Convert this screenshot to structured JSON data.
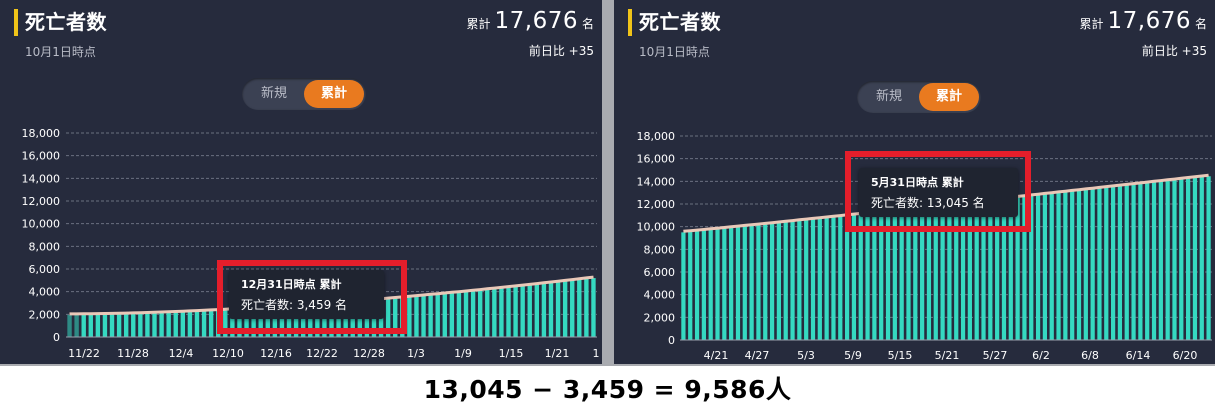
{
  "panels": [
    {
      "title": "死亡者数",
      "subtitle": "10月1日時点",
      "total_label": "累計",
      "total_value": "17,676",
      "total_unit": "名",
      "delta": "前日比 +35",
      "toggle": {
        "option_new": "新規",
        "option_cumulative": "累計",
        "selected": "累計"
      },
      "tooltip": {
        "title": "12月31日時点 累計",
        "value": "死亡者数: 3,459 名"
      }
    },
    {
      "title": "死亡者数",
      "subtitle": "10月1日時点",
      "total_label": "累計",
      "total_value": "17,676",
      "total_unit": "名",
      "delta": "前日比 +35",
      "toggle": {
        "option_new": "新規",
        "option_cumulative": "累計",
        "selected": "累計"
      },
      "tooltip": {
        "title": "5月31日時点 累計",
        "value": "死亡者数: 13,045 名"
      }
    }
  ],
  "formula": "13,045 − 3,459 = 9,586人",
  "colors": {
    "bar": "#35d9c1",
    "bar_dim": "#1f8a7c",
    "background": "#262b3d",
    "accent_toggle": "#e97a1f",
    "title_bar": "#f0c419",
    "highlight": "#e41e2b"
  },
  "chart_data": [
    {
      "type": "bar",
      "series": [
        {
          "values_start": 1950,
          "values_end": 5200
        }
      ],
      "x_tick_labels": [
        "11/22",
        "11/28",
        "12/4",
        "12/10",
        "12/16",
        "12/22",
        "12/28",
        "1/3",
        "1/9",
        "1/15",
        "1/21",
        "1"
      ],
      "y_tick_labels": [
        "0",
        "2,000",
        "4,000",
        "6,000",
        "8,000",
        "10,000",
        "12,000",
        "14,000",
        "16,000",
        "18,000"
      ],
      "ylim": [
        0,
        18000
      ],
      "grid": true,
      "bar_count": 75,
      "highlight_bar_index": 40,
      "highlight_value": 3459
    },
    {
      "type": "bar",
      "series": [
        {
          "values_start": 9500,
          "values_end": 14450
        }
      ],
      "x_tick_labels": [
        "4/21",
        "4/27",
        "5/3",
        "5/9",
        "5/15",
        "5/21",
        "5/27",
        "6/2",
        "6/8",
        "6/14",
        "6/20"
      ],
      "y_tick_labels": [
        "0",
        "2,000",
        "4,000",
        "6,000",
        "8,000",
        "10,000",
        "12,000",
        "14,000",
        "16,000",
        "18,000"
      ],
      "ylim": [
        0,
        18000
      ],
      "grid": true,
      "bar_count": 78,
      "highlight_bar_index": 45,
      "highlight_value": 13045
    }
  ]
}
